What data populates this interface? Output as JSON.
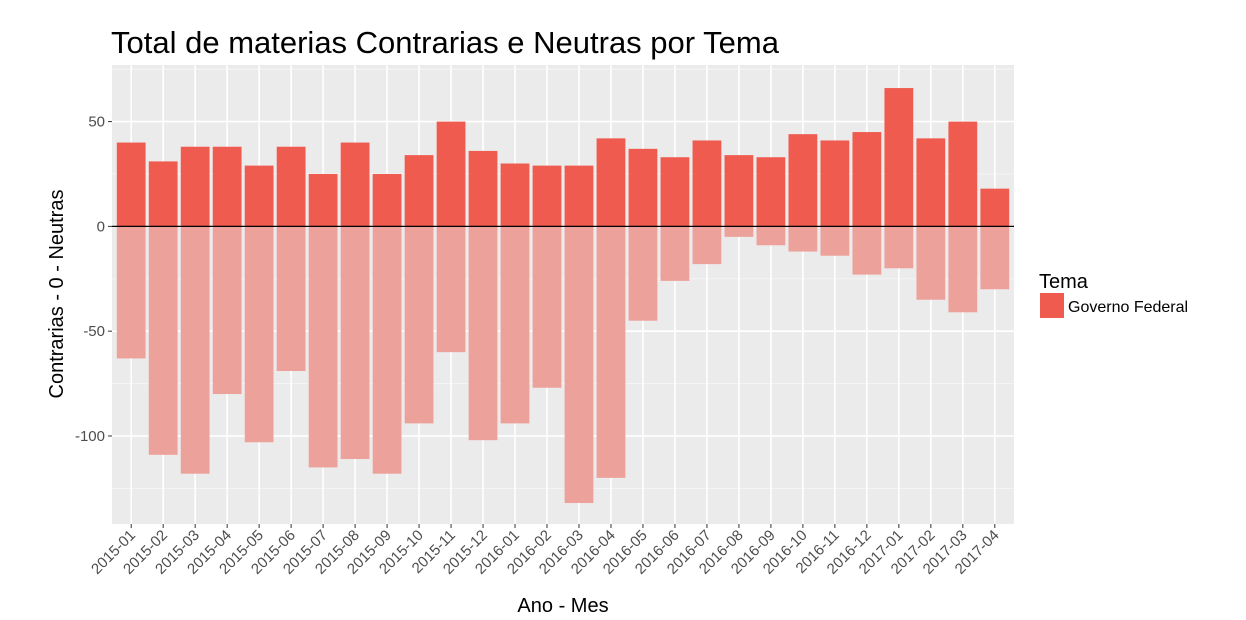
{
  "chart_data": {
    "type": "bar",
    "title": "Total de materias Contrarias e Neutras por Tema",
    "xlabel": "Ano - Mes",
    "ylabel": "Contrarias - 0 - Neutras",
    "ylim": [
      -142,
      77
    ],
    "yticks": [
      50,
      0,
      -50,
      -100
    ],
    "ytick_labels": [
      "50",
      "0",
      "-50",
      "-100"
    ],
    "grid": true,
    "legend": {
      "title": "Tema",
      "placement": "right",
      "entries": [
        "Governo Federal"
      ]
    },
    "colors": {
      "positive": "#EF5B4F",
      "negative": "#EDA19B",
      "panel": "#EBEBEB",
      "grid": "#FFFFFF"
    },
    "categories": [
      "2015-01",
      "2015-02",
      "2015-03",
      "2015-04",
      "2015-05",
      "2015-06",
      "2015-07",
      "2015-08",
      "2015-09",
      "2015-10",
      "2015-11",
      "2015-12",
      "2016-01",
      "2016-02",
      "2016-03",
      "2016-04",
      "2016-05",
      "2016-06",
      "2016-07",
      "2016-08",
      "2016-09",
      "2016-10",
      "2016-11",
      "2016-12",
      "2017-01",
      "2017-02",
      "2017-03",
      "2017-04"
    ],
    "series": [
      {
        "name": "Neutras",
        "values": [
          40,
          31,
          38,
          38,
          29,
          38,
          25,
          40,
          25,
          34,
          50,
          36,
          30,
          29,
          29,
          42,
          37,
          33,
          41,
          34,
          33,
          44,
          41,
          45,
          66,
          42,
          50,
          18
        ]
      },
      {
        "name": "Contrarias",
        "values": [
          -63,
          -109,
          -118,
          -80,
          -103,
          -69,
          -115,
          -111,
          -118,
          -94,
          -60,
          -102,
          -94,
          -77,
          -132,
          -120,
          -45,
          -26,
          -18,
          -5,
          -9,
          -12,
          -14,
          -23,
          -20,
          -35,
          -41,
          -30
        ]
      }
    ]
  }
}
